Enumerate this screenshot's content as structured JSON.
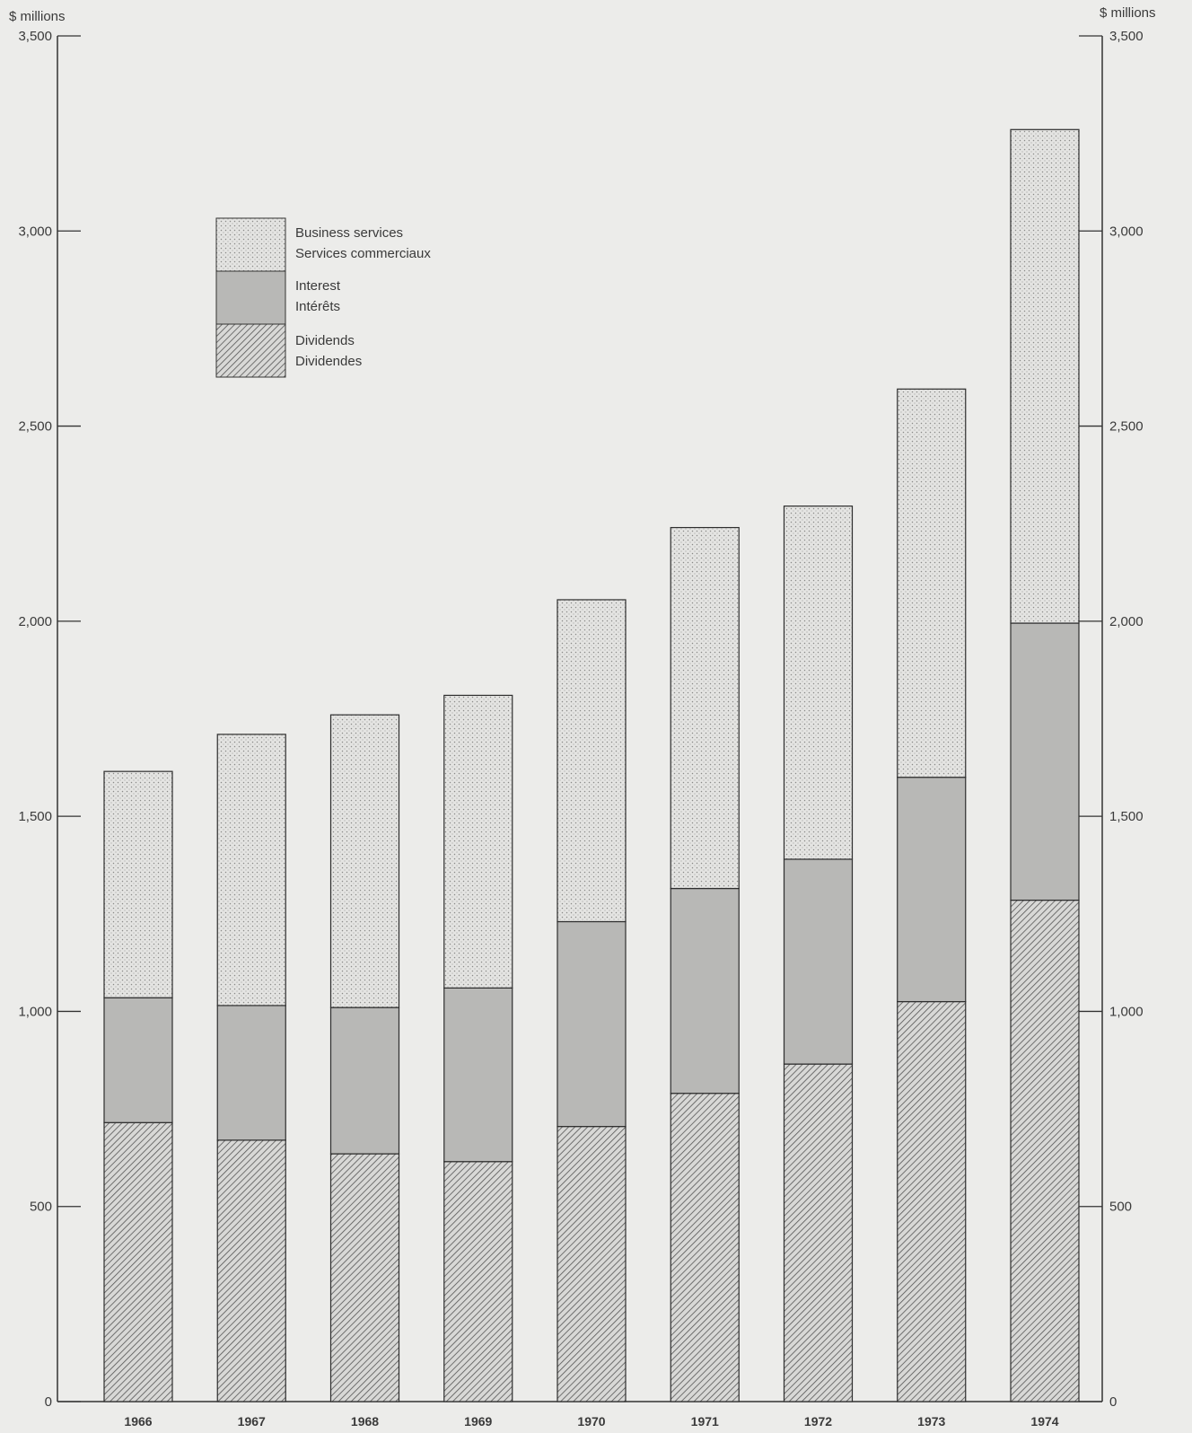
{
  "chart_data": {
    "type": "bar",
    "stacked": true,
    "unit_left": "$ millions",
    "unit_right": "$ millions",
    "categories": [
      "1966",
      "1967",
      "1968",
      "1969",
      "1970",
      "1971",
      "1972",
      "1973",
      "1974"
    ],
    "series": [
      {
        "name": "Dividends",
        "name_fr": "Dividendes",
        "values": [
          715,
          670,
          635,
          615,
          705,
          790,
          865,
          1025,
          1285
        ]
      },
      {
        "name": "Interest",
        "name_fr": "Intérêts",
        "values": [
          320,
          345,
          375,
          445,
          525,
          525,
          525,
          575,
          710
        ]
      },
      {
        "name": "Business services",
        "name_fr": "Services commerciaux",
        "values": [
          580,
          695,
          750,
          750,
          825,
          925,
          905,
          995,
          1265
        ]
      }
    ],
    "totals": [
      1615,
      1710,
      1760,
      1810,
      2055,
      2240,
      2295,
      2595,
      3260
    ],
    "yticks": [
      0,
      500,
      1000,
      1500,
      2000,
      2500,
      3000,
      3500
    ],
    "ytick_labels": [
      "0",
      "500",
      "1,000",
      "1,500",
      "2,000",
      "2,500",
      "3,000",
      "3,500"
    ],
    "ylim": [
      0,
      3500
    ],
    "legend_position": "upper-left",
    "colors": {
      "background": "#ececea",
      "axis": "#333333",
      "business_services": "#e3e3e1",
      "interest": "#b8b8b6",
      "dividends": "#c6c6c4"
    }
  }
}
